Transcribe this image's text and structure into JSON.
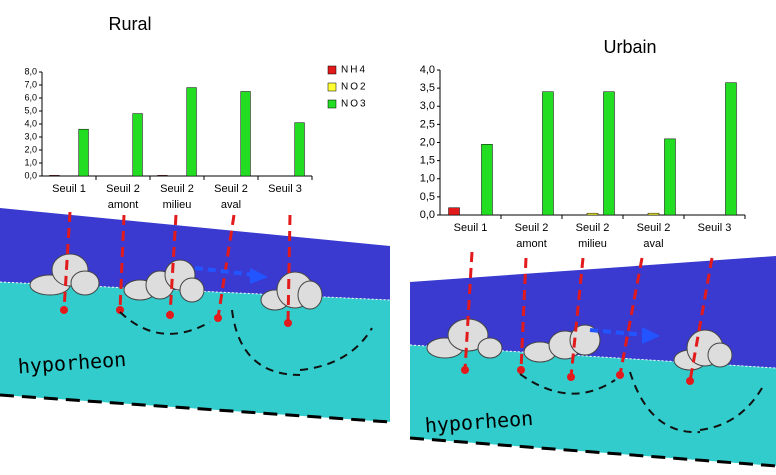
{
  "chart_data": [
    {
      "type": "bar",
      "title": "Rural",
      "categories": [
        "Seuil 1",
        "Seuil 2 amont",
        "Seuil 2 milieu",
        "Seuil 2 aval",
        "Seuil 3"
      ],
      "series": [
        {
          "name": "NH4",
          "color": "#e31a1c",
          "values": [
            0.05,
            0,
            0.05,
            0,
            0
          ]
        },
        {
          "name": "NO2",
          "color": "#ffff33",
          "values": [
            0,
            0,
            0,
            0,
            0
          ]
        },
        {
          "name": "NO3",
          "color": "#22dd22",
          "values": [
            3.6,
            4.8,
            6.8,
            6.5,
            4.1
          ]
        }
      ],
      "ylim": [
        0,
        8
      ],
      "yticks": [
        {
          "value": 0,
          "label": "0,0"
        },
        {
          "value": 1,
          "label": "1,0"
        },
        {
          "value": 2,
          "label": "2,0"
        },
        {
          "value": 3,
          "label": "3,0"
        },
        {
          "value": 4,
          "label": "4,0"
        },
        {
          "value": 5,
          "label": "5,0"
        },
        {
          "value": 6,
          "label": "6,0"
        },
        {
          "value": 7,
          "label": "7,0"
        },
        {
          "value": 8,
          "label": "8,0"
        }
      ],
      "legend": "right",
      "annotations": [
        "hyporheon"
      ]
    },
    {
      "type": "bar",
      "title": "Urbain",
      "categories": [
        "Seuil 1",
        "Seuil 2 amont",
        "Seuil 2 milieu",
        "Seuil 2 aval",
        "Seuil 3"
      ],
      "series": [
        {
          "color": "#e31a1c",
          "values": [
            0.2,
            0,
            0,
            0,
            0
          ]
        },
        {
          "color": "#ffff33",
          "values": [
            0,
            0,
            0.05,
            0.05,
            0
          ]
        },
        {
          "color": "#22dd22",
          "values": [
            1.95,
            3.4,
            3.4,
            2.1,
            3.65
          ]
        }
      ],
      "ylim": [
        0,
        4
      ],
      "yticks": [
        {
          "value": 0,
          "label": "0,0"
        },
        {
          "value": 0.5,
          "label": "0,5"
        },
        {
          "value": 1,
          "label": "1,0"
        },
        {
          "value": 1.5,
          "label": "1,5"
        },
        {
          "value": 2,
          "label": "2,0"
        },
        {
          "value": 2.5,
          "label": "2,5"
        },
        {
          "value": 3,
          "label": "3,0"
        },
        {
          "value": 3.5,
          "label": "3,5"
        },
        {
          "value": 4,
          "label": "4,0"
        }
      ],
      "annotations": [
        "hyporheon"
      ]
    }
  ]
}
